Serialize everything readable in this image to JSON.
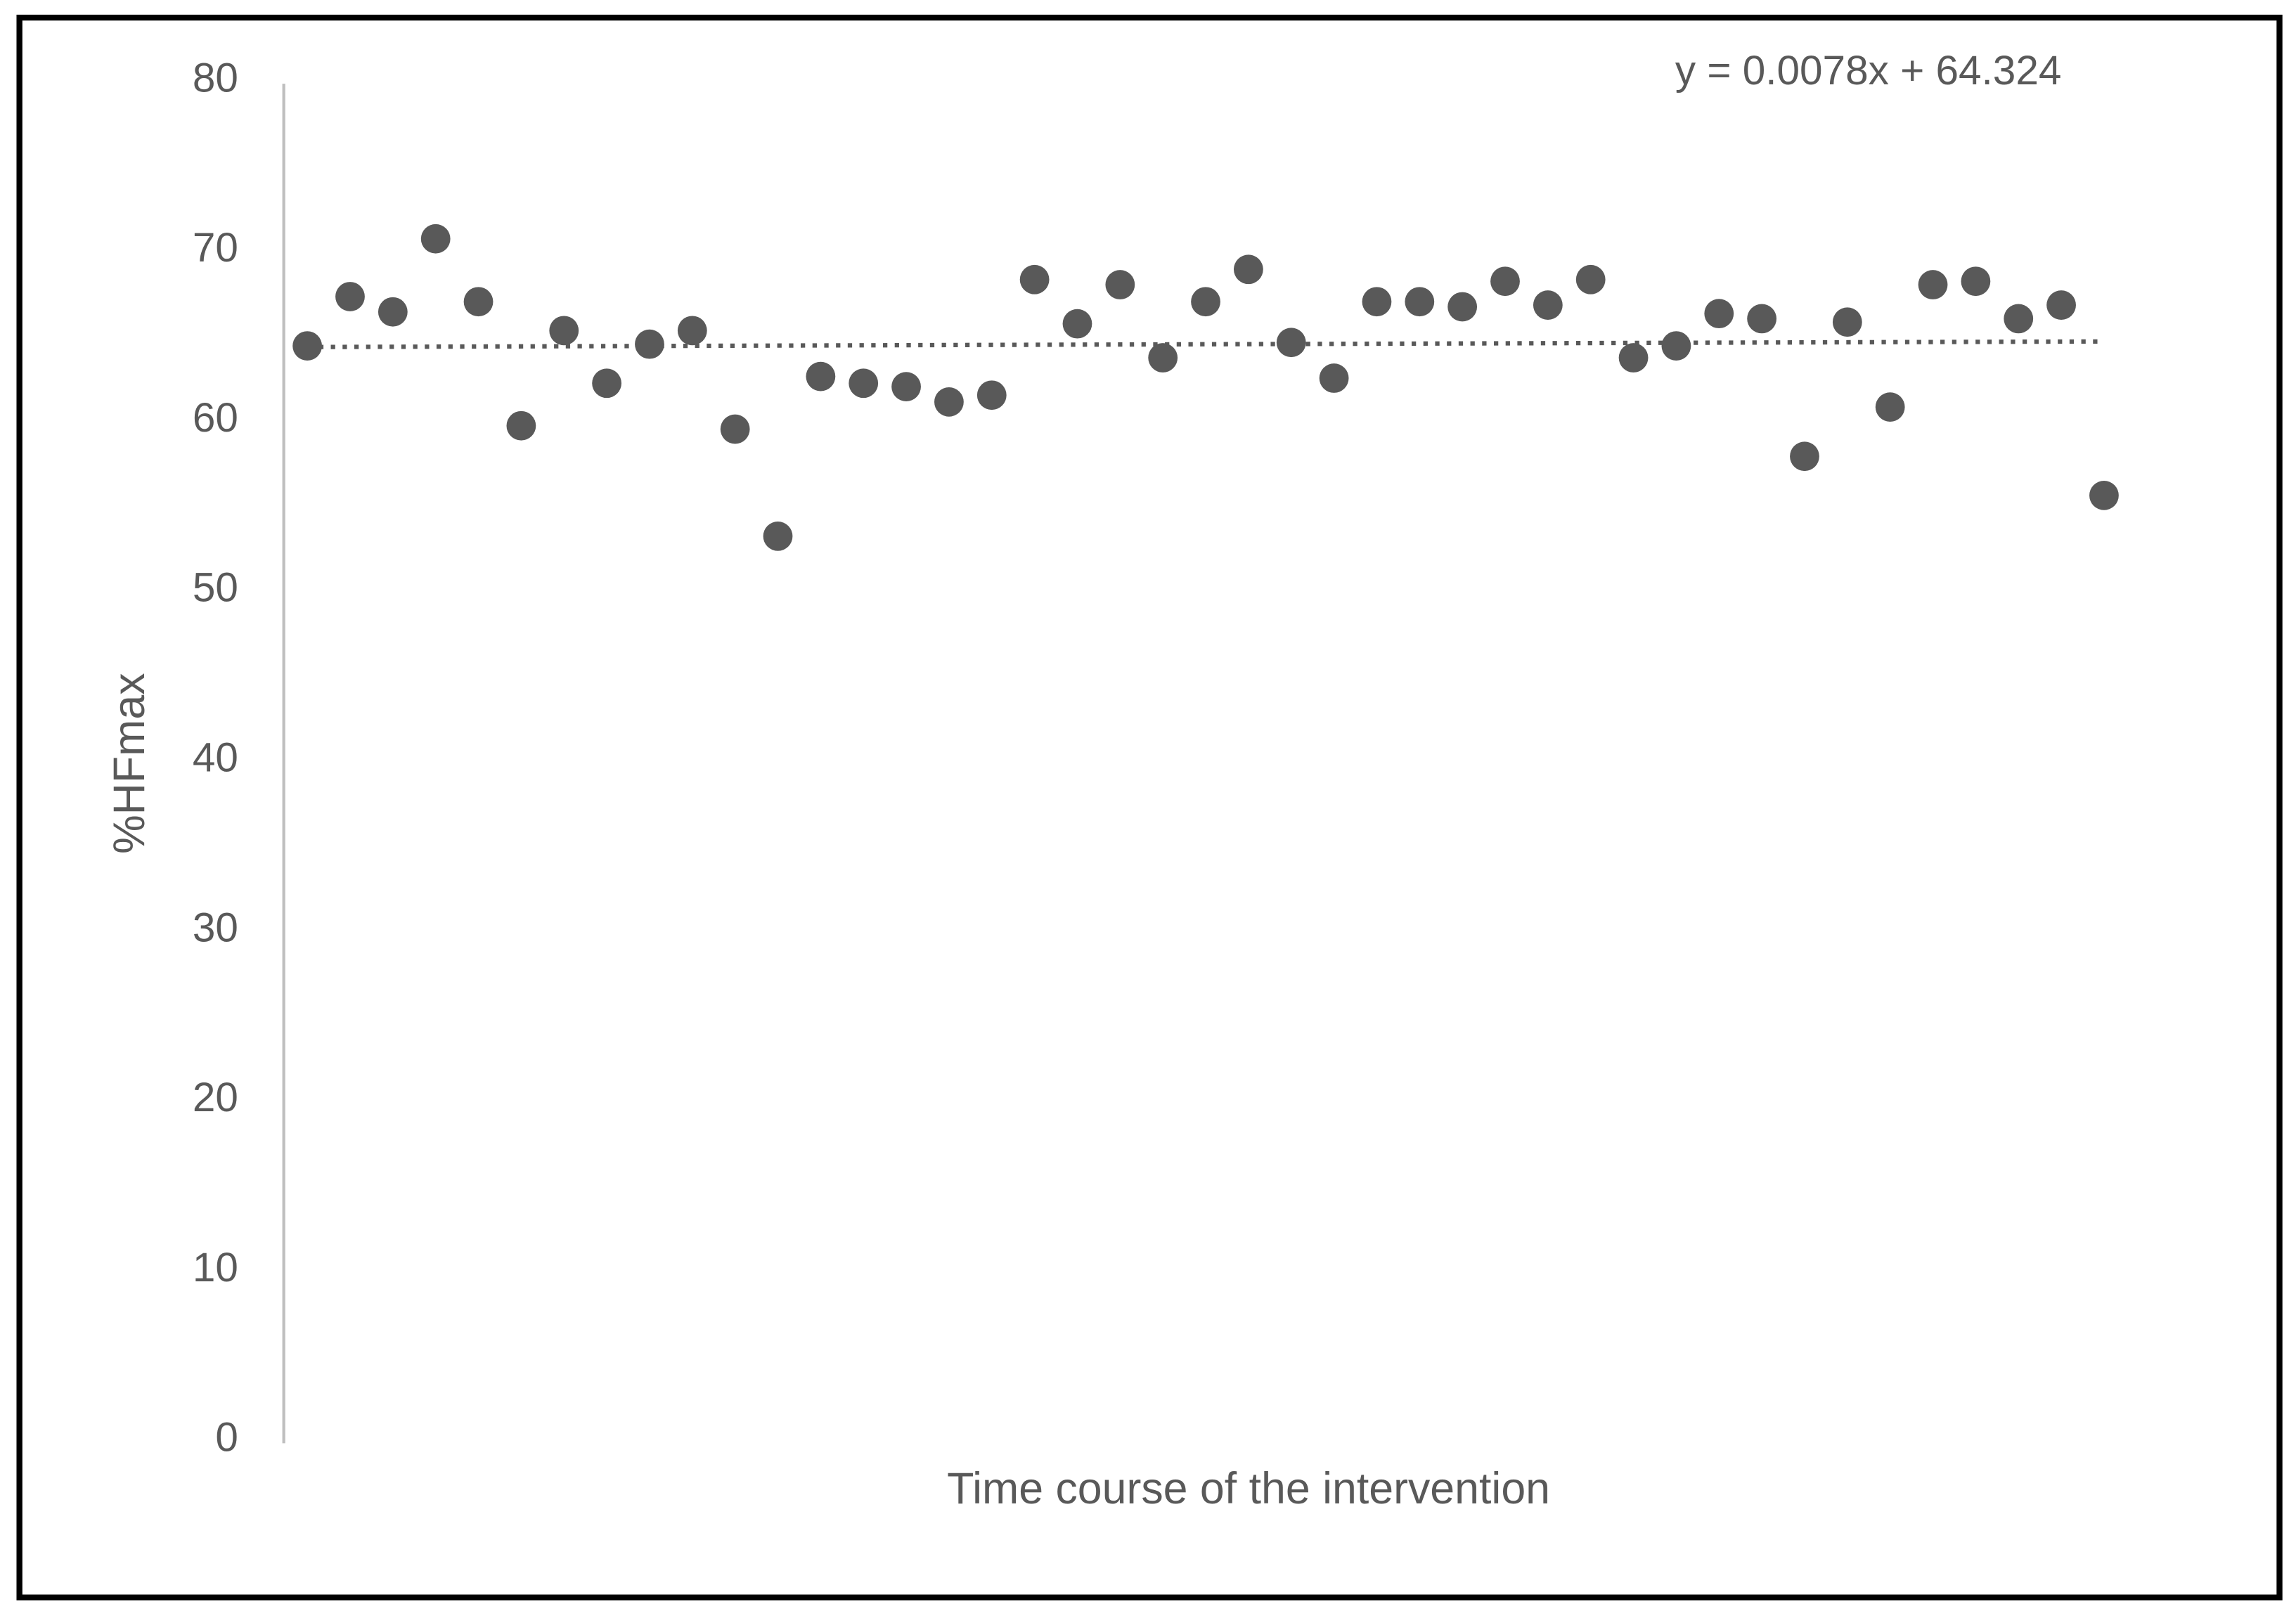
{
  "chart_data": {
    "type": "scatter",
    "y_label": "%HFmax",
    "x_label": "Time course of the intervention",
    "annotation": "y = 0.0078x + 64.324",
    "trendline": {
      "slope": 0.0078,
      "intercept": 64.324
    },
    "color": "#595959",
    "x": [
      1,
      2,
      3,
      4,
      5,
      6,
      7,
      8,
      9,
      10,
      11,
      12,
      13,
      14,
      15,
      16,
      17,
      18,
      19,
      20,
      21,
      22,
      23,
      24,
      25,
      26,
      27,
      28,
      29,
      30,
      31,
      32,
      33,
      34,
      35,
      36,
      37,
      38,
      39,
      40,
      41,
      42,
      43
    ],
    "values": [
      64.4,
      67.3,
      66.4,
      70.7,
      67.0,
      59.7,
      65.3,
      62.2,
      64.5,
      65.3,
      59.5,
      53.2,
      62.6,
      62.2,
      62.0,
      61.1,
      61.5,
      68.3,
      65.7,
      68.0,
      63.7,
      67.0,
      68.9,
      64.6,
      62.5,
      67.0,
      67.0,
      66.7,
      68.2,
      66.8,
      68.3,
      63.7,
      64.4,
      66.3,
      66.0,
      57.9,
      65.8,
      60.8,
      68.0,
      68.2,
      66.0,
      66.8,
      55.6
    ],
    "xlim": [
      0.45,
      43.6
    ],
    "ylim": [
      0,
      80
    ],
    "yticks": [
      0,
      10,
      20,
      30,
      40,
      50,
      60,
      70,
      80
    ],
    "grid": false
  }
}
